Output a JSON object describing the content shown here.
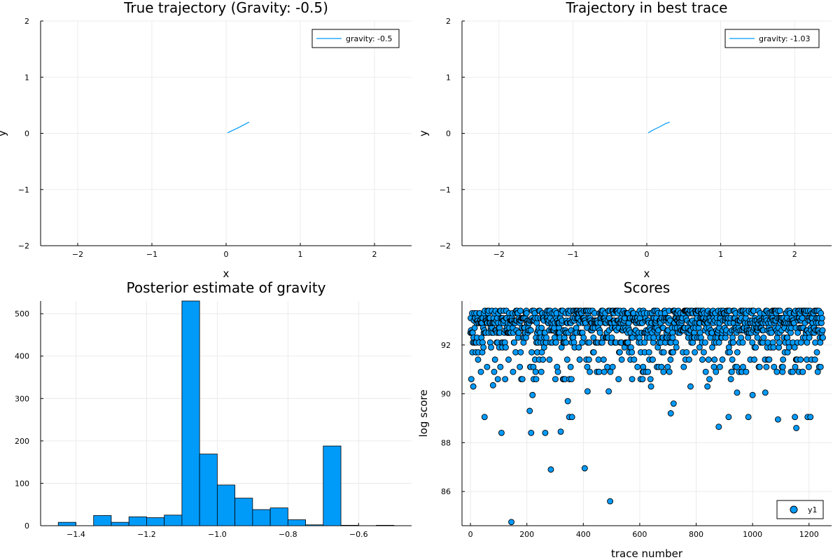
{
  "chart_data": [
    {
      "type": "line",
      "title": "True trajectory (Gravity: -0.5)",
      "xlabel": "x",
      "ylabel": "y",
      "xlim": [
        -2.5,
        2.5
      ],
      "ylim": [
        -2,
        2
      ],
      "xticks": [
        -2,
        -1,
        0,
        1,
        2
      ],
      "xtick_labels": [
        "−2",
        "−1",
        "0",
        "1",
        "2"
      ],
      "yticks": [
        -2,
        -1,
        0,
        1,
        2
      ],
      "ytick_labels": [
        "−2",
        "−1",
        "0",
        "1",
        "2"
      ],
      "grid": true,
      "legend_position": "top-right",
      "series": [
        {
          "name": "gravity: -0.5",
          "color": "#009af9",
          "x": [
            0.02,
            0.1,
            0.18,
            0.25,
            0.31
          ],
          "y": [
            0.01,
            0.06,
            0.11,
            0.16,
            0.2
          ]
        }
      ]
    },
    {
      "type": "line",
      "title": "Trajectory in best trace",
      "xlabel": "x",
      "ylabel": "y",
      "xlim": [
        -2.5,
        2.5
      ],
      "ylim": [
        -2,
        2
      ],
      "xticks": [
        -2,
        -1,
        0,
        1,
        2
      ],
      "xtick_labels": [
        "−2",
        "−1",
        "0",
        "1",
        "2"
      ],
      "yticks": [
        -2,
        -1,
        0,
        1,
        2
      ],
      "ytick_labels": [
        "−2",
        "−1",
        "0",
        "1",
        "2"
      ],
      "grid": true,
      "legend_position": "top-right",
      "series": [
        {
          "name": "gravity: -1.03",
          "color": "#009af9",
          "x": [
            0.02,
            0.1,
            0.18,
            0.25,
            0.31
          ],
          "y": [
            0.01,
            0.07,
            0.12,
            0.17,
            0.2
          ]
        }
      ]
    },
    {
      "type": "bar",
      "title": "Posterior estimate of gravity",
      "xlim": [
        -1.5,
        -0.45
      ],
      "ylim": [
        0,
        530
      ],
      "xticks": [
        -1.4,
        -1.2,
        -1.0,
        -0.8,
        -0.6
      ],
      "xtick_labels": [
        "−1.4",
        "−1.2",
        "−1.0",
        "−0.8",
        "−0.6"
      ],
      "yticks": [
        0,
        100,
        200,
        300,
        400,
        500
      ],
      "ytick_labels": [
        "0",
        "100",
        "200",
        "300",
        "400",
        "500"
      ],
      "grid": true,
      "bar_color": "#009af9",
      "bins": [
        {
          "x0": -1.45,
          "x1": -1.4,
          "value": 8
        },
        {
          "x0": -1.4,
          "x1": -1.35,
          "value": 0
        },
        {
          "x0": -1.35,
          "x1": -1.3,
          "value": 24
        },
        {
          "x0": -1.3,
          "x1": -1.25,
          "value": 8
        },
        {
          "x0": -1.25,
          "x1": -1.2,
          "value": 21
        },
        {
          "x0": -1.2,
          "x1": -1.15,
          "value": 19
        },
        {
          "x0": -1.15,
          "x1": -1.1,
          "value": 25
        },
        {
          "x0": -1.1,
          "x1": -1.05,
          "value": 530
        },
        {
          "x0": -1.05,
          "x1": -1.0,
          "value": 169
        },
        {
          "x0": -1.0,
          "x1": -0.95,
          "value": 96
        },
        {
          "x0": -0.95,
          "x1": -0.9,
          "value": 65
        },
        {
          "x0": -0.9,
          "x1": -0.85,
          "value": 38
        },
        {
          "x0": -0.85,
          "x1": -0.8,
          "value": 42
        },
        {
          "x0": -0.8,
          "x1": -0.75,
          "value": 14
        },
        {
          "x0": -0.75,
          "x1": -0.7,
          "value": 2
        },
        {
          "x0": -0.7,
          "x1": -0.65,
          "value": 188
        },
        {
          "x0": -0.65,
          "x1": -0.6,
          "value": 1
        },
        {
          "x0": -0.6,
          "x1": -0.55,
          "value": 0
        },
        {
          "x0": -0.55,
          "x1": -0.5,
          "value": 1
        }
      ]
    },
    {
      "type": "scatter",
      "title": "Scores",
      "xlabel": "trace number",
      "ylabel": "log score",
      "xlim": [
        -30,
        1280
      ],
      "ylim": [
        84.6,
        93.8
      ],
      "xticks": [
        0,
        200,
        400,
        600,
        800,
        1000,
        1200
      ],
      "xtick_labels": [
        "0",
        "200",
        "400",
        "600",
        "800",
        "1000",
        "1200"
      ],
      "yticks": [
        86,
        88,
        90,
        92
      ],
      "ytick_labels": [
        "86",
        "88",
        "90",
        "92"
      ],
      "grid": true,
      "legend_position": "bottom-right",
      "series": [
        {
          "name": "y1",
          "color": "#009af9",
          "num_points": 1250,
          "band_levels": [
            93.4,
            93.3,
            93.1,
            93.0,
            92.9,
            92.7,
            92.6,
            92.5,
            92.3,
            92.1,
            91.9,
            91.7,
            91.4,
            91.1,
            90.9,
            90.6
          ],
          "outliers": [
            {
              "x": 10,
              "y": 90.3
            },
            {
              "x": 50,
              "y": 89.05
            },
            {
              "x": 80,
              "y": 90.35
            },
            {
              "x": 110,
              "y": 88.4
            },
            {
              "x": 145,
              "y": 84.75
            },
            {
              "x": 210,
              "y": 89.3
            },
            {
              "x": 215,
              "y": 88.4
            },
            {
              "x": 220,
              "y": 89.95
            },
            {
              "x": 265,
              "y": 88.4
            },
            {
              "x": 285,
              "y": 86.9
            },
            {
              "x": 320,
              "y": 88.45
            },
            {
              "x": 345,
              "y": 89.7
            },
            {
              "x": 350,
              "y": 89.05
            },
            {
              "x": 360,
              "y": 89.05
            },
            {
              "x": 405,
              "y": 86.95
            },
            {
              "x": 415,
              "y": 90.1
            },
            {
              "x": 490,
              "y": 90.1
            },
            {
              "x": 495,
              "y": 85.6
            },
            {
              "x": 640,
              "y": 90.3
            },
            {
              "x": 710,
              "y": 89.2
            },
            {
              "x": 720,
              "y": 89.6
            },
            {
              "x": 780,
              "y": 90.3
            },
            {
              "x": 840,
              "y": 90.3
            },
            {
              "x": 880,
              "y": 88.65
            },
            {
              "x": 915,
              "y": 89.05
            },
            {
              "x": 945,
              "y": 90.05
            },
            {
              "x": 985,
              "y": 89.05
            },
            {
              "x": 1000,
              "y": 89.95
            },
            {
              "x": 1045,
              "y": 90.05
            },
            {
              "x": 1090,
              "y": 88.95
            },
            {
              "x": 1150,
              "y": 89.05
            },
            {
              "x": 1155,
              "y": 88.6
            },
            {
              "x": 1195,
              "y": 89.05
            },
            {
              "x": 1205,
              "y": 89.05
            }
          ]
        }
      ]
    }
  ]
}
